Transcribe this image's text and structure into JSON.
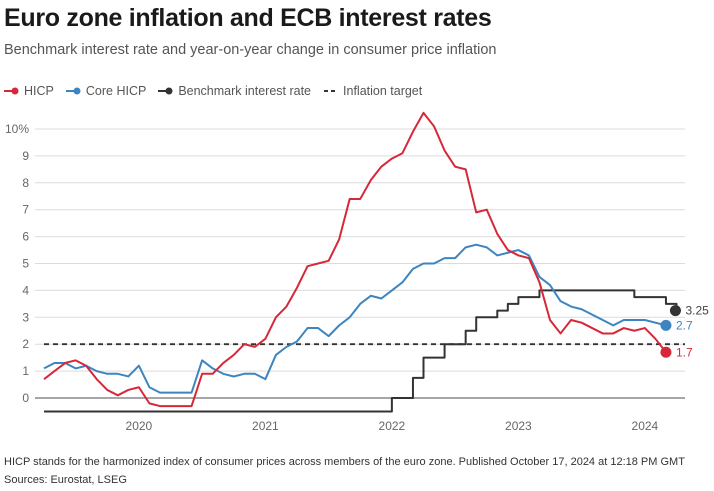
{
  "header": {
    "title": "Euro zone inflation and ECB interest rates",
    "subtitle": "Benchmark interest rate and year-on-year change in consumer price inflation"
  },
  "footer": {
    "note": "HICP stands for the harmonized index of consumer prices across members of the euro zone. Published October 17, 2024 at 12:18 PM GMT",
    "sources": "Sources: Eurostat, LSEG"
  },
  "chart_data": {
    "type": "line",
    "title": "Euro zone inflation and ECB interest rates",
    "subtitle": "Benchmark interest rate and year-on-year change in consumer price inflation",
    "xlabel": "",
    "ylabel": "",
    "ylim": [
      -0.5,
      10
    ],
    "yticks": [
      0,
      1,
      2,
      3,
      4,
      5,
      6,
      7,
      8,
      9,
      10
    ],
    "ytick_labels": [
      "0",
      "1",
      "2",
      "3",
      "4",
      "5",
      "6",
      "7",
      "8",
      "9",
      "10%"
    ],
    "xticks": [
      "2020",
      "2021",
      "2022",
      "2023",
      "2024"
    ],
    "x_start": "2019-10",
    "x_end": "2024-09",
    "grid": true,
    "legend_position": "top-left",
    "legend": [
      {
        "name": "HICP",
        "color": "#d62839",
        "style": "line-dot"
      },
      {
        "name": "Core HICP",
        "color": "#3d85c0",
        "style": "line-dot"
      },
      {
        "name": "Benchmark interest rate",
        "color": "#333333",
        "style": "line-dot"
      },
      {
        "name": "Inflation target",
        "color": "#333333",
        "style": "dashed"
      }
    ],
    "series": [
      {
        "name": "HICP",
        "color": "#d62839",
        "end_label": "1.7",
        "values": [
          0.7,
          1.0,
          1.3,
          1.4,
          1.2,
          0.7,
          0.3,
          0.1,
          0.3,
          0.4,
          -0.2,
          -0.3,
          -0.3,
          -0.3,
          -0.3,
          0.9,
          0.9,
          1.3,
          1.6,
          2.0,
          1.9,
          2.2,
          3.0,
          3.4,
          4.1,
          4.9,
          5.0,
          5.1,
          5.9,
          7.4,
          7.4,
          8.1,
          8.6,
          8.9,
          9.1,
          9.9,
          10.6,
          10.1,
          9.2,
          8.6,
          8.5,
          6.9,
          7.0,
          6.1,
          5.5,
          5.3,
          5.2,
          4.3,
          2.9,
          2.4,
          2.9,
          2.8,
          2.6,
          2.4,
          2.4,
          2.6,
          2.5,
          2.6,
          2.2,
          1.7
        ]
      },
      {
        "name": "Core HICP",
        "color": "#3d85c0",
        "end_label": "2.7",
        "values": [
          1.1,
          1.3,
          1.3,
          1.1,
          1.2,
          1.0,
          0.9,
          0.9,
          0.8,
          1.2,
          0.4,
          0.2,
          0.2,
          0.2,
          0.2,
          1.4,
          1.1,
          0.9,
          0.8,
          0.9,
          0.9,
          0.7,
          1.6,
          1.9,
          2.1,
          2.6,
          2.6,
          2.3,
          2.7,
          3.0,
          3.5,
          3.8,
          3.7,
          4.0,
          4.3,
          4.8,
          5.0,
          5.0,
          5.2,
          5.2,
          5.6,
          5.7,
          5.6,
          5.3,
          5.4,
          5.5,
          5.3,
          4.5,
          4.2,
          3.6,
          3.4,
          3.3,
          3.1,
          2.9,
          2.7,
          2.9,
          2.9,
          2.9,
          2.8,
          2.7
        ]
      },
      {
        "name": "Benchmark interest rate",
        "color": "#333333",
        "step": true,
        "end_label": "3.25",
        "values": [
          -0.5,
          -0.5,
          -0.5,
          -0.5,
          -0.5,
          -0.5,
          -0.5,
          -0.5,
          -0.5,
          -0.5,
          -0.5,
          -0.5,
          -0.5,
          -0.5,
          -0.5,
          -0.5,
          -0.5,
          -0.5,
          -0.5,
          -0.5,
          -0.5,
          -0.5,
          -0.5,
          -0.5,
          -0.5,
          -0.5,
          -0.5,
          -0.5,
          -0.5,
          -0.5,
          -0.5,
          -0.5,
          -0.5,
          0.0,
          0.0,
          0.75,
          1.5,
          1.5,
          2.0,
          2.0,
          2.5,
          3.0,
          3.0,
          3.25,
          3.5,
          3.75,
          3.75,
          4.0,
          4.0,
          4.0,
          4.0,
          4.0,
          4.0,
          4.0,
          4.0,
          4.0,
          3.75,
          3.75,
          3.75,
          3.5,
          3.25
        ]
      },
      {
        "name": "Inflation target",
        "color": "#333333",
        "dashed": true,
        "values": [
          2,
          2
        ]
      }
    ]
  }
}
